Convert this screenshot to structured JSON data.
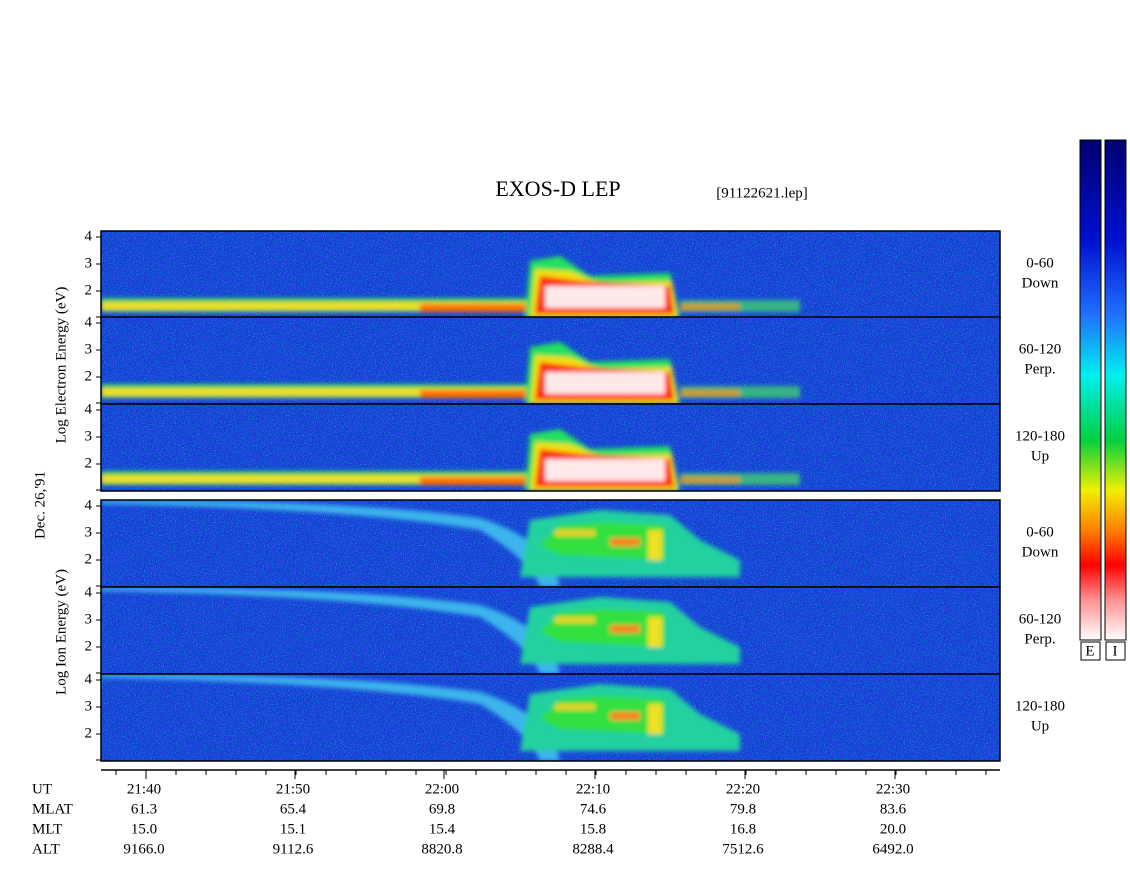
{
  "header": {
    "title": "EXOS-D LEP",
    "file": "[91122621.lep]"
  },
  "date": "Dec. 26,'91",
  "electron": {
    "axis_label": "Log  Electron  Energy (eV)",
    "panels": [
      {
        "angle": "0-60",
        "direction": "Down"
      },
      {
        "angle": "60-120",
        "direction": "Perp."
      },
      {
        "angle": "120-180",
        "direction": "Up"
      }
    ]
  },
  "ion": {
    "axis_label": "Log  Ion  Energy (eV)",
    "panels": [
      {
        "angle": "0-60",
        "direction": "Down"
      },
      {
        "angle": "60-120",
        "direction": "Perp."
      },
      {
        "angle": "120-180",
        "direction": "Up"
      }
    ]
  },
  "yticks": [
    "4",
    "3",
    "2"
  ],
  "time_axis": {
    "rows": [
      {
        "name": "UT",
        "values": [
          "21:40",
          "21:50",
          "22:00",
          "22:10",
          "22:20",
          "22:30"
        ]
      },
      {
        "name": "MLAT",
        "values": [
          "61.3",
          "65.4",
          "69.8",
          "74.6",
          "79.8",
          "83.6"
        ]
      },
      {
        "name": "MLT",
        "values": [
          "15.0",
          "15.1",
          "15.4",
          "15.8",
          "16.8",
          "20.0"
        ]
      },
      {
        "name": "ALT",
        "values": [
          "9166.0",
          "9112.6",
          "8820.8",
          "8288.4",
          "7512.6",
          "6492.0"
        ]
      }
    ]
  },
  "colorbars": [
    "E",
    "I"
  ]
}
